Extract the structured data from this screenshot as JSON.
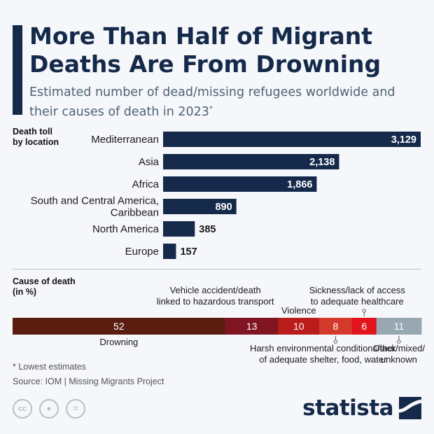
{
  "header": {
    "title": "More Than Half of Migrant Deaths Are From Drowning",
    "subtitle": "Estimated number of dead/missing refugees worldwide and their causes of death in 2023",
    "subtitle_mark": "*"
  },
  "colors": {
    "navy": "#15294a",
    "drowning": "#5a1c0f",
    "vehicle": "#7f1521",
    "violence": "#ba1b1b",
    "harsh": "#d33a2c",
    "sickness": "#e2141c",
    "other": "#97a8b3"
  },
  "chart_data": [
    {
      "type": "bar",
      "orientation": "horizontal",
      "section_label": "Death toll\nby location",
      "categories": [
        "Mediterranean",
        "Asia",
        "Africa",
        "South and Central America,\nCaribbean",
        "North America",
        "Europe"
      ],
      "values": [
        3129,
        2138,
        1866,
        890,
        385,
        157
      ],
      "value_labels": [
        "3,129",
        "2,138",
        "1,866",
        "890",
        "385",
        "157"
      ],
      "xlim": [
        0,
        3129
      ]
    },
    {
      "type": "bar",
      "orientation": "stacked-horizontal",
      "section_label": "Cause of death\n(in %)",
      "categories": [
        "Drowning",
        "Vehicle accident/death\nlinked to hazardous transport",
        "Violence",
        "Harsh environmental conditions/lack\nof adequate shelter, food, water",
        "Sickness/lack of access\nto adequate healthcare",
        "Other/mixed/\nunknown"
      ],
      "values": [
        52,
        13,
        10,
        8,
        6,
        11
      ],
      "colors": [
        "#5a1c0f",
        "#7f1521",
        "#ba1b1b",
        "#d33a2c",
        "#e2141c",
        "#97a8b3"
      ]
    }
  ],
  "footer": {
    "note": "* Lowest estimates",
    "source": "Source: IOM | Missing Migrants Project",
    "license_icons": [
      "cc-icon",
      "by-person-icon",
      "nd-equals-icon"
    ],
    "license_glyphs": [
      "cc",
      "●",
      "="
    ],
    "brand": "statista"
  }
}
